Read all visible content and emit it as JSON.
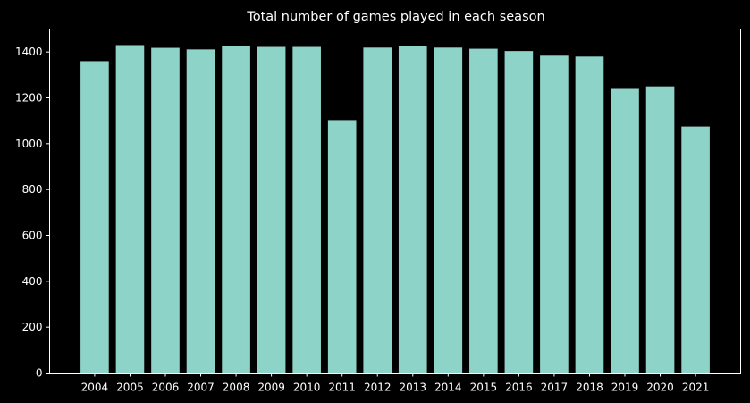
{
  "chart_data": {
    "type": "bar",
    "title": "Total number of games played in each season",
    "xlabel": "",
    "ylabel": "",
    "categories": [
      "2004",
      "2005",
      "2006",
      "2007",
      "2008",
      "2009",
      "2010",
      "2011",
      "2012",
      "2013",
      "2014",
      "2015",
      "2016",
      "2017",
      "2018",
      "2019",
      "2020",
      "2021"
    ],
    "values": [
      1360,
      1430,
      1418,
      1411,
      1427,
      1422,
      1422,
      1103,
      1419,
      1427,
      1419,
      1414,
      1404,
      1384,
      1380,
      1239,
      1250,
      1075
    ],
    "ylim": [
      0,
      1500
    ],
    "yticks": [
      0,
      200,
      400,
      600,
      800,
      1000,
      1200,
      1400
    ],
    "grid": false,
    "bar_color": "#8dd3c7",
    "background_color": "#000000",
    "axis_color": "#ffffff"
  }
}
